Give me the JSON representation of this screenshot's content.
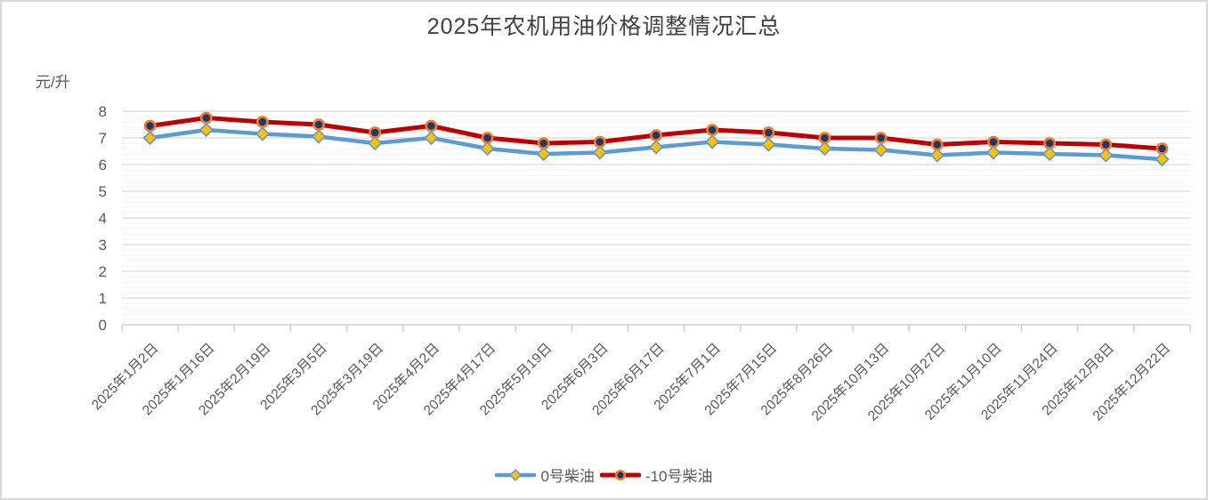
{
  "title": "2025年农机用油价格调整情况汇总",
  "y_axis_title": "元/升",
  "colors": {
    "title_text": "#404040",
    "axis_text": "#595959",
    "major_grid": "#d9d9d9",
    "minor_grid": "#f0f0f0",
    "axis_line": "#cfcfcf",
    "series_blue": "#5b9bd5",
    "series_red": "#c00000",
    "marker_gold": "#ffc000",
    "marker_navy": "#1f3864",
    "marker_orange": "#ed7d31",
    "frame_border": "#d9d9d9"
  },
  "chart_data": {
    "type": "line",
    "title": "2025年农机用油价格调整情况汇总",
    "xlabel": "",
    "ylabel": "元/升",
    "ylim": [
      0,
      8
    ],
    "y_major_step": 1,
    "y_minor_step": 0.2,
    "grid": true,
    "legend_position": "bottom",
    "x_tick_rotation": -45,
    "categories": [
      "2025年1月2日",
      "2025年1月16日",
      "2025年2月19日",
      "2025年3月5日",
      "2025年3月19日",
      "2025年4月2日",
      "2025年4月17日",
      "2025年5月19日",
      "2025年6月3日",
      "2025年6月17日",
      "2025年7月1日",
      "2025年7月15日",
      "2025年8月26日",
      "2025年10月13日",
      "2025年10月27日",
      "2025年11月10日",
      "2025年11月24日",
      "2025年12月8日",
      "2025年12月22日"
    ],
    "series": [
      {
        "name": "0号柴油",
        "color": "#5b9bd5",
        "line_width": 4.5,
        "marker": "diamond",
        "marker_fill": "#ffc000",
        "marker_stroke": "#5b9bd5",
        "values": [
          7.0,
          7.3,
          7.15,
          7.05,
          6.8,
          7.0,
          6.6,
          6.4,
          6.45,
          6.65,
          6.85,
          6.75,
          6.6,
          6.55,
          6.35,
          6.45,
          6.4,
          6.35,
          6.2
        ]
      },
      {
        "name": "-10号柴油",
        "color": "#c00000",
        "line_width": 5,
        "marker": "circle",
        "marker_fill": "#1f3864",
        "marker_stroke": "#ed7d31",
        "values": [
          7.45,
          7.75,
          7.6,
          7.5,
          7.2,
          7.45,
          7.0,
          6.8,
          6.85,
          7.1,
          7.3,
          7.2,
          7.0,
          7.0,
          6.75,
          6.85,
          6.8,
          6.75,
          6.6
        ]
      }
    ]
  }
}
